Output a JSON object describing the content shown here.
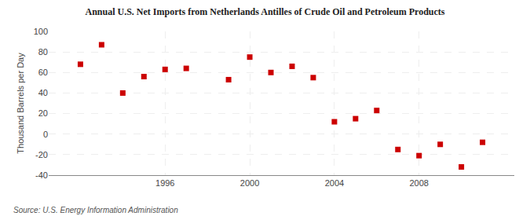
{
  "chart_data": {
    "type": "scatter",
    "title": "Annual U.S. Net Imports from Netherlands Antilles of Crude Oil and Petroleum Products",
    "ylabel": "Thousand Barrels per Day",
    "annotations": [
      "Source: U.S. Energy Information Administration"
    ],
    "x": [
      1992,
      1993,
      1994,
      1995,
      1996,
      1997,
      1999,
      2000,
      2001,
      2002,
      2003,
      2004,
      2005,
      2006,
      2007,
      2008,
      2009,
      2010,
      2011
    ],
    "values": [
      68,
      87,
      40,
      56,
      63,
      64,
      53,
      75,
      60,
      66,
      55,
      12,
      15,
      23,
      -15,
      -21,
      -10,
      -32,
      -8
    ],
    "xlim": [
      1990.5,
      2012.5
    ],
    "xticks": [
      1996,
      2000,
      2004,
      2008
    ],
    "ylim": [
      -40,
      100
    ],
    "yticks": [
      -40,
      -20,
      0,
      20,
      40,
      60,
      80,
      100
    ],
    "color": "#cc0000",
    "marker": "square",
    "grid": true
  }
}
